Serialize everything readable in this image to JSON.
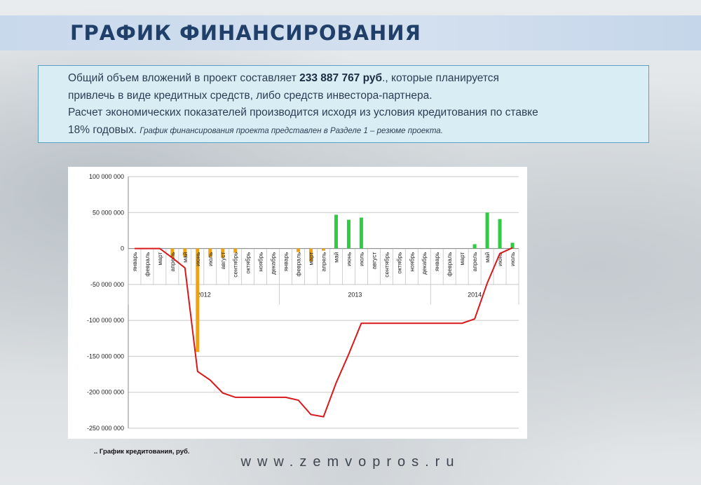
{
  "page": {
    "title": "ГРАФИК ФИНАНСИРОВАНИЯ",
    "info": {
      "line1_pre": "Общий объем вложений в проект составляет ",
      "line1_bold": "233 887 767 руб",
      "line1_post": "., которые планируется",
      "line2": "привлечь в виде кредитных средств, либо средств инвестора-партнера.",
      "line3": "Расчет экономических показателей производится исходя из условия кредитования по ставке",
      "line4_main": "18% годовых. ",
      "line4_small": "График финансирования  проекта представлен в Разделе 1 – резюме проекта."
    },
    "caption": ".. График кредитования, руб.",
    "footer": "www.zemvopros.ru"
  },
  "chart_data": {
    "type": "bar",
    "ylim": [
      -250000000,
      100000000
    ],
    "yticks": [
      100000000,
      50000000,
      0,
      -50000000,
      -100000000,
      -150000000,
      -200000000,
      -250000000
    ],
    "ytick_labels": [
      "100 000 000",
      "50 000 000",
      "0",
      "-50 000 000",
      "-100 000 000",
      "-150 000 000",
      "-200 000 000",
      "-250 000 000"
    ],
    "categories": [
      "январь",
      "февраль",
      "март",
      "апрель",
      "май",
      "июнь",
      "июль",
      "август",
      "сентябрь",
      "октябрь",
      "ноябрь",
      "декабрь",
      "январь",
      "февраль",
      "март",
      "апрель",
      "май",
      "июнь",
      "июль",
      "август",
      "сентябрь",
      "октябрь",
      "ноябрь",
      "декабрь",
      "январь",
      "февраль",
      "март",
      "апрель",
      "май",
      "июнь",
      "июль"
    ],
    "years": [
      {
        "label": "2012",
        "start": 0,
        "end": 11
      },
      {
        "label": "2013",
        "start": 12,
        "end": 23
      },
      {
        "label": "2014",
        "start": 24,
        "end": 30
      }
    ],
    "bars": [
      0,
      0,
      0,
      -13000000,
      -12000000,
      -144000000,
      -12000000,
      -13000000,
      -6000000,
      0,
      0,
      0,
      0,
      -5000000,
      -18000000,
      -3000000,
      47000000,
      40000000,
      43000000,
      0,
      0,
      0,
      0,
      0,
      0,
      0,
      0,
      6000000,
      50000000,
      41000000,
      8000000
    ],
    "line": [
      0,
      0,
      0,
      -13000000,
      -27000000,
      -171000000,
      -183000000,
      -201000000,
      -207000000,
      -207000000,
      -207000000,
      -207000000,
      -207000000,
      -211000000,
      -231000000,
      -234000000,
      -187000000,
      -147000000,
      -104000000,
      -104000000,
      -104000000,
      -104000000,
      -104000000,
      -104000000,
      -104000000,
      -104000000,
      -104000000,
      -98000000,
      -48000000,
      -7000000,
      1000000
    ],
    "colors": {
      "negative_bar": "#f0a30a",
      "positive_bar": "#2ecc40",
      "line": "#d7191c",
      "grid": "#c9c9c9"
    }
  }
}
